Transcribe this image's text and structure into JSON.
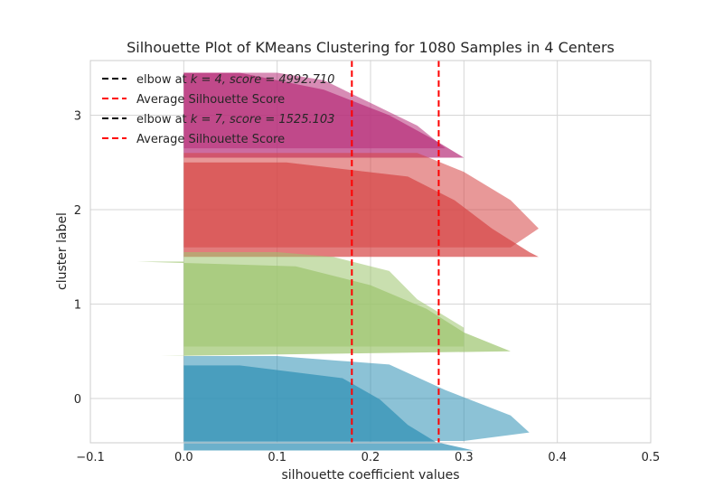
{
  "chart_data": {
    "type": "area",
    "title": "Silhouette Plot of KMeans Clustering for 1080 Samples in 4 Centers",
    "xlabel": "silhouette coefficient values",
    "ylabel": "cluster label",
    "xlim": [
      -0.1,
      0.5
    ],
    "xticks": [
      -0.1,
      0.0,
      0.1,
      0.2,
      0.3,
      0.4,
      0.5
    ],
    "xtick_labels": [
      "−0.1",
      "0.0",
      "0.1",
      "0.2",
      "0.3",
      "0.4",
      "0.5"
    ],
    "ytick_labels": [
      "0",
      "1",
      "2",
      "3"
    ],
    "grid": true,
    "legend_position": "top-left",
    "legend": [
      {
        "label": "elbow at $k = 4$, $score = 4992.710$",
        "text_plain": "elbow at ",
        "math": "k = 4, score = 4992.710",
        "color": "#000000",
        "dashed": true
      },
      {
        "label": "Average Silhouette Score",
        "color": "#ff0000",
        "dashed": true
      },
      {
        "label": "elbow at $k = 7$, $score = 1525.103$",
        "text_plain": "elbow at ",
        "math": "k = 7, score = 1525.103",
        "color": "#000000",
        "dashed": true
      },
      {
        "label": "Average Silhouette Score",
        "color": "#ff0000",
        "dashed": true
      }
    ],
    "average_silhouette_scores": [
      0.18,
      0.273
    ],
    "series": [
      {
        "name": "k=7",
        "opacity": 0.7,
        "clusters": [
          {
            "label": "0",
            "color": "#2e8fb5",
            "y_range": [
              -0.55,
              0.35
            ],
            "profile": [
              [
                0,
                0.31
              ],
              [
                0.1,
                0.27
              ],
              [
                0.3,
                0.24
              ],
              [
                0.6,
                0.21
              ],
              [
                0.85,
                0.17
              ],
              [
                1,
                0.06
              ]
            ]
          },
          {
            "label": "1",
            "color": "#9cc46e",
            "y_range": [
              0.45,
              1.45
            ],
            "profile": [
              [
                0,
                -0.025
              ],
              [
                0.05,
                0.35
              ],
              [
                0.25,
                0.3
              ],
              [
                0.5,
                0.26
              ],
              [
                0.75,
                0.2
              ],
              [
                0.95,
                0.12
              ],
              [
                1,
                -0.05
              ]
            ]
          },
          {
            "label": "2",
            "color": "#d64444",
            "y_range": [
              1.5,
              2.5
            ],
            "profile": [
              [
                0,
                0.38
              ],
              [
                0.05,
                0.37
              ],
              [
                0.3,
                0.33
              ],
              [
                0.6,
                0.29
              ],
              [
                0.85,
                0.24
              ],
              [
                1,
                0.11
              ]
            ]
          },
          {
            "label": "3",
            "color": "#b62e79",
            "y_range": [
              2.55,
              3.45
            ],
            "profile": [
              [
                0,
                0.3
              ],
              [
                0.2,
                0.27
              ],
              [
                0.5,
                0.22
              ],
              [
                0.8,
                0.15
              ],
              [
                1,
                0.06
              ]
            ]
          }
        ]
      },
      {
        "name": "k=4",
        "opacity": 0.55,
        "clusters": [
          {
            "label": "0",
            "color": "#2e8fb5",
            "y_range": [
              -0.45,
              0.45
            ],
            "profile": [
              [
                0,
                0.3
              ],
              [
                0.1,
                0.37
              ],
              [
                0.3,
                0.35
              ],
              [
                0.6,
                0.28
              ],
              [
                0.9,
                0.22
              ],
              [
                1,
                0.1
              ]
            ]
          },
          {
            "label": "1",
            "color": "#9cc46e",
            "y_range": [
              0.55,
              1.55
            ],
            "profile": [
              [
                0,
                0.3
              ],
              [
                0.2,
                0.3
              ],
              [
                0.5,
                0.25
              ],
              [
                0.8,
                0.22
              ],
              [
                0.95,
                0.16
              ],
              [
                1,
                0.1
              ]
            ]
          },
          {
            "label": "2",
            "color": "#d64444",
            "y_range": [
              1.6,
              2.6
            ],
            "profile": [
              [
                0,
                0.35
              ],
              [
                0.2,
                0.38
              ],
              [
                0.5,
                0.35
              ],
              [
                0.8,
                0.3
              ],
              [
                1,
                0.25
              ]
            ]
          },
          {
            "label": "3",
            "color": "#b62e79",
            "y_range": [
              2.65,
              3.45
            ],
            "profile": [
              [
                0,
                0.28
              ],
              [
                0.3,
                0.25
              ],
              [
                0.6,
                0.2
              ],
              [
                0.9,
                0.15
              ],
              [
                1,
                0.1
              ]
            ]
          }
        ]
      }
    ]
  }
}
